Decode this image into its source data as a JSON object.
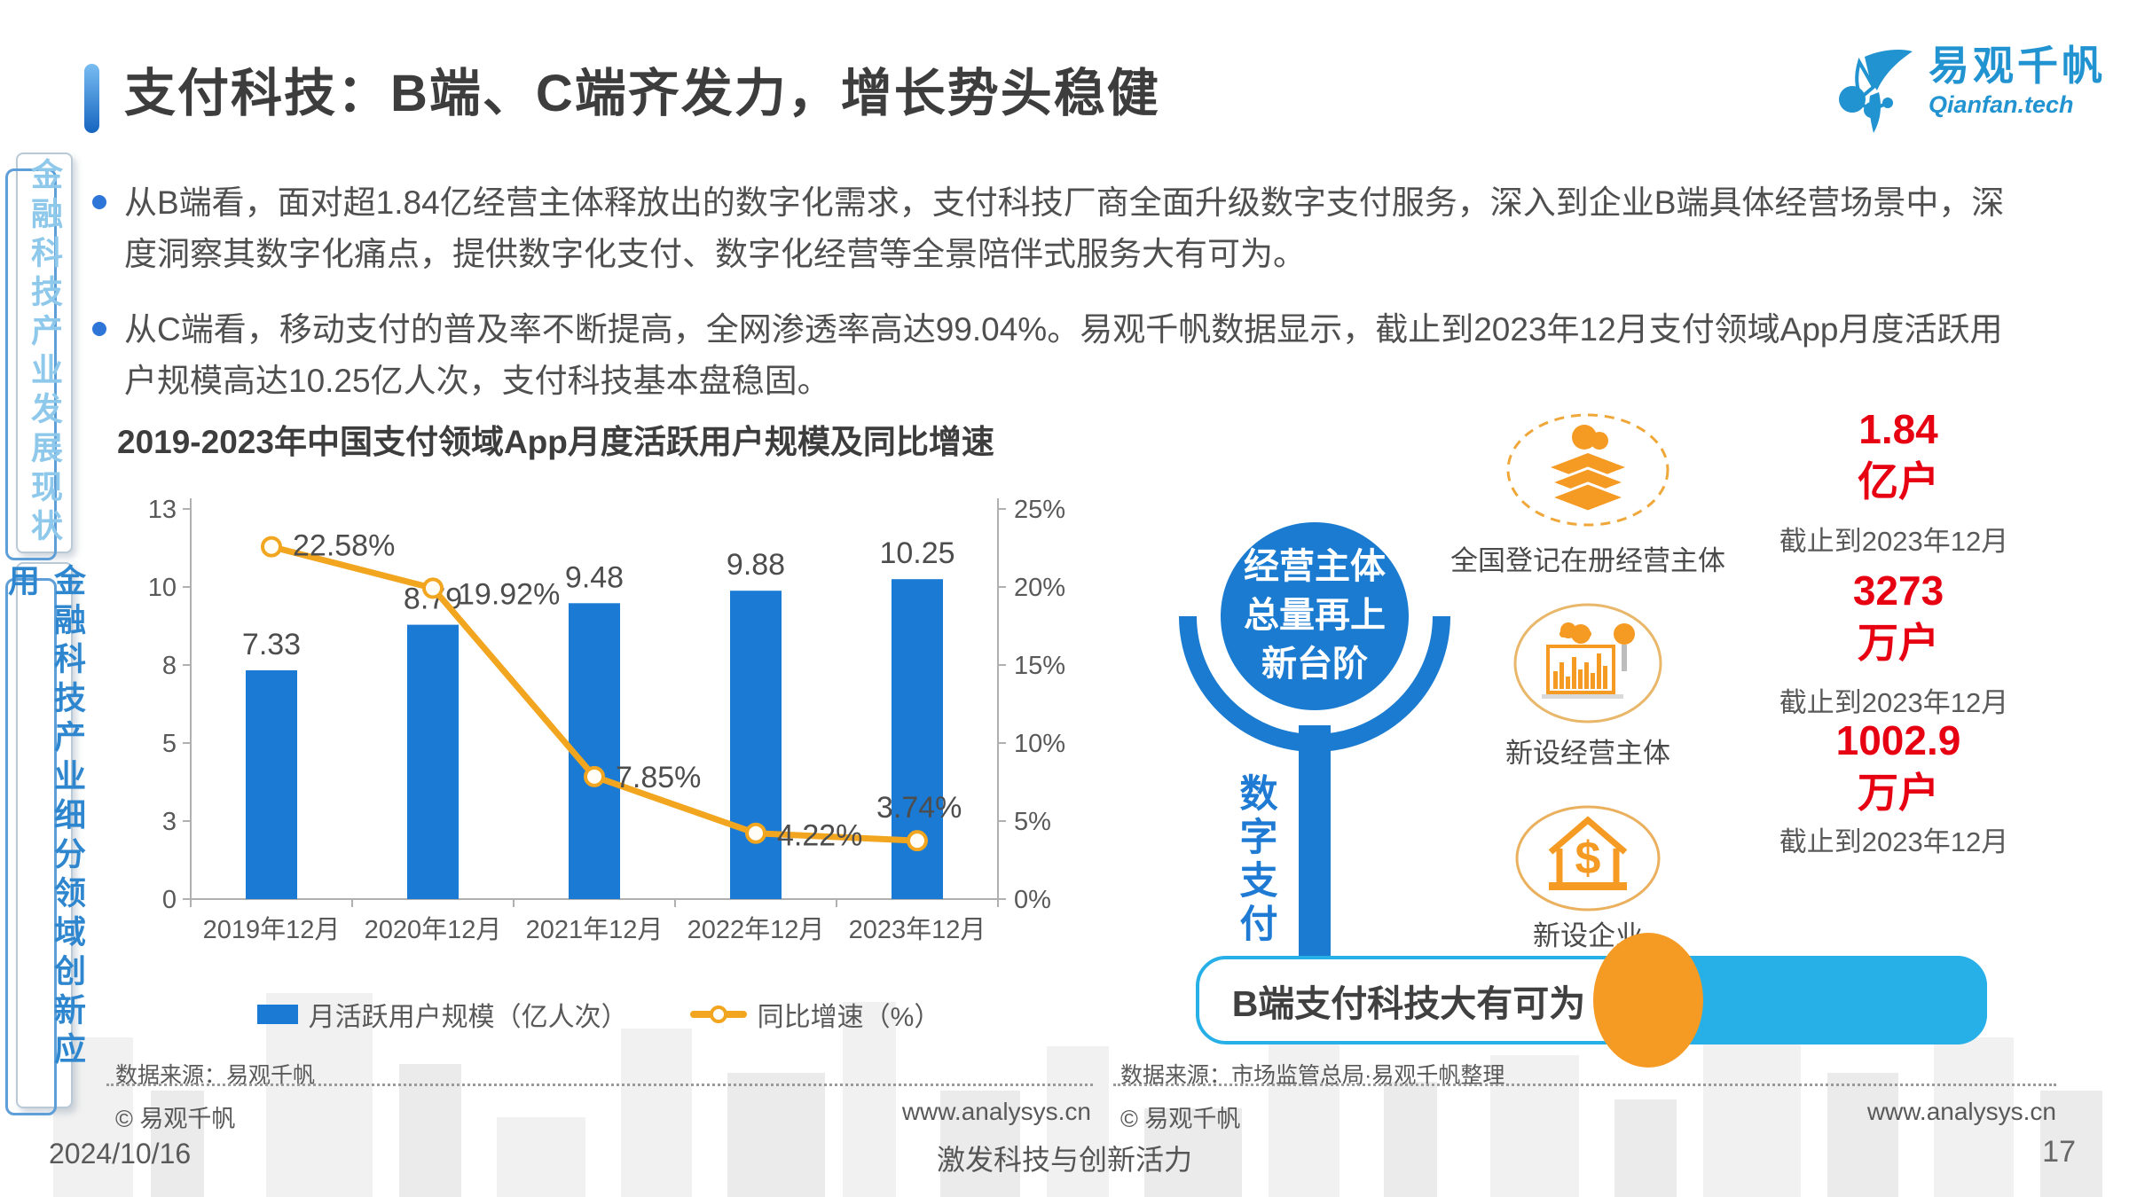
{
  "slide": {
    "title": "支付科技：B端、C端齐发力，增长势头稳健"
  },
  "logo": {
    "name": "易观千帆",
    "sub": "Qianfan.tech"
  },
  "sidebar": {
    "items": [
      {
        "label": "金融科技产业发展现状",
        "active": false
      },
      {
        "label": "金融科技产业细分领域创新应用",
        "active": true
      }
    ]
  },
  "bullets": [
    "从B端看，面对超1.84亿经营主体释放出的数字化需求，支付科技厂商全面升级数字支付服务，深入到企业B端具体经营场景中，深度洞察其数字化痛点，提供数字化支付、数字化经营等全景陪伴式服务大有可为。",
    "从C端看，移动支付的普及率不断提高，全网渗透率高达99.04%。易观千帆数据显示，截止到2023年12月支付领域App月度活跃用户规模高达10.25亿人次，支付科技基本盘稳固。"
  ],
  "chart_data": {
    "type": "bar",
    "title": "2019-2023年中国支付领域App月度活跃用户规模及同比增速",
    "categories": [
      "2019年12月",
      "2020年12月",
      "2021年12月",
      "2022年12月",
      "2023年12月"
    ],
    "series": [
      {
        "name": "月活跃用户规模（亿人次）",
        "kind": "bar",
        "values": [
          7.33,
          8.79,
          9.48,
          9.88,
          10.25
        ],
        "labels": [
          "7.33",
          "8.79",
          "9.48",
          "9.88",
          "10.25"
        ],
        "color": "#1b7ad4"
      },
      {
        "name": "同比增速（%）",
        "kind": "line",
        "values": [
          22.58,
          19.92,
          7.85,
          4.22,
          3.74
        ],
        "labels": [
          "22.58%",
          "19.92%",
          "7.85%",
          "4.22%",
          "3.74%"
        ],
        "color": "#f2a51e"
      }
    ],
    "left_axis": {
      "ticks": [
        "13",
        "10",
        "8",
        "5",
        "3",
        "0"
      ],
      "max": 12.5
    },
    "right_axis": {
      "ticks": [
        "25%",
        "20%",
        "15%",
        "10%",
        "5%",
        "0%"
      ],
      "max": 25
    },
    "legend_position": "bottom",
    "grid": false
  },
  "right_panel": {
    "badge_lines": [
      "经营主体",
      "总量再上",
      "新台阶"
    ],
    "stem_label": "数字支付",
    "rows": [
      {
        "icon": "layers-cloud",
        "label": "全国登记在册经营主体",
        "value": "1.84",
        "unit": "亿户",
        "date": "截止到2023年12月"
      },
      {
        "icon": "factory-chart",
        "label": "新设经营主体",
        "value": "3273",
        "unit": "万户",
        "date": "截止到2023年12月"
      },
      {
        "icon": "house-dollar",
        "label": "新设企业",
        "value": "1002.9",
        "unit": "万户",
        "date": "截止到2023年12月"
      }
    ],
    "banner": "B端支付科技大有可为"
  },
  "footer": {
    "left": {
      "source": "数据来源：易观千帆",
      "copyright": "© 易观千帆",
      "website": "www.analysys.cn"
    },
    "right": {
      "source": "数据来源：市场监管总局·易观千帆整理",
      "copyright": "© 易观千帆",
      "website": "www.analysys.cn"
    },
    "date": "2024/10/16",
    "slogan": "激发科技与创新活力",
    "page": "17"
  },
  "colors": {
    "bar_blue": "#1b7ad4",
    "line_orange": "#f2a51e",
    "stat_red": "#e60012",
    "banner_cyan": "#27b0e8",
    "icon_orange": "#f59a23",
    "ornament_blue": "#1a7bd0",
    "sidebar_active_blue": "#2e86cf",
    "sidebar_inactive_blue": "#8ec8ea"
  }
}
